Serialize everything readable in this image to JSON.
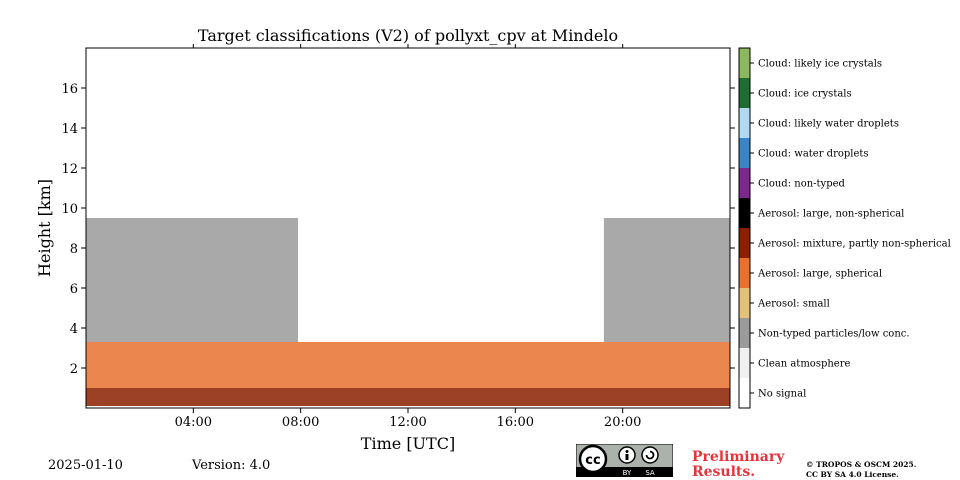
{
  "chart_data": {
    "type": "heatmap",
    "title": "Target classifications (V2) of pollyxt_cpv at Mindelo",
    "xlabel": "Time [UTC]",
    "ylabel": "Height [km]",
    "xlim_hours": [
      0,
      24
    ],
    "ylim_km": [
      0,
      18
    ],
    "x_ticks": [
      "04:00",
      "08:00",
      "12:00",
      "16:00",
      "20:00"
    ],
    "x_tick_hours": [
      4,
      8,
      12,
      16,
      20
    ],
    "y_ticks": [
      "2",
      "4",
      "6",
      "8",
      "10",
      "12",
      "14",
      "16"
    ],
    "y_tick_values": [
      2,
      4,
      6,
      8,
      10,
      12,
      14,
      16
    ],
    "classes": [
      {
        "label": "Cloud: likely ice crystals",
        "color": "#8cb860"
      },
      {
        "label": "Cloud: ice crystals",
        "color": "#1e6e32"
      },
      {
        "label": "Cloud: likely water droplets",
        "color": "#b3d8f2"
      },
      {
        "label": "Cloud: water droplets",
        "color": "#3b85c4"
      },
      {
        "label": "Cloud: non-typed",
        "color": "#7b2a8c"
      },
      {
        "label": "Aerosol: large, non-spherical",
        "color": "#000000"
      },
      {
        "label": "Aerosol: mixture, partly non-spherical",
        "color": "#8b2000"
      },
      {
        "label": "Aerosol: large, spherical",
        "color": "#e8712f"
      },
      {
        "label": "Aerosol: small",
        "color": "#e2c178"
      },
      {
        "label": "Non-typed particles/low conc.",
        "color": "#9a9a9a"
      },
      {
        "label": "Clean atmosphere",
        "color": "#f0f0f0"
      },
      {
        "label": "No signal",
        "color": "#ffffff"
      }
    ],
    "layers": [
      {
        "class": "Aerosol: mixture, partly non-spherical",
        "hours": [
          0,
          24
        ],
        "height_km": [
          0.1,
          1.0
        ]
      },
      {
        "class": "Aerosol: large, spherical",
        "hours": [
          0,
          24
        ],
        "height_km": [
          1.0,
          3.3
        ]
      },
      {
        "class": "Non-typed particles/low conc.",
        "hours": [
          0,
          7.9
        ],
        "height_km": [
          3.3,
          9.5
        ]
      },
      {
        "class": "Non-typed particles/low conc.",
        "hours": [
          19.3,
          24
        ],
        "height_km": [
          3.3,
          9.5
        ]
      }
    ]
  },
  "footer": {
    "date": "2025-01-10",
    "version": "Version: 4.0",
    "preliminary_line1": "Preliminary",
    "preliminary_line2": "Results.",
    "license_line1": "© TROPOS & OSCM 2025.",
    "license_line2": "CC BY SA 4.0 License."
  },
  "cc_badge": {
    "cc": "cc",
    "by": "BY",
    "sa": "SA"
  }
}
